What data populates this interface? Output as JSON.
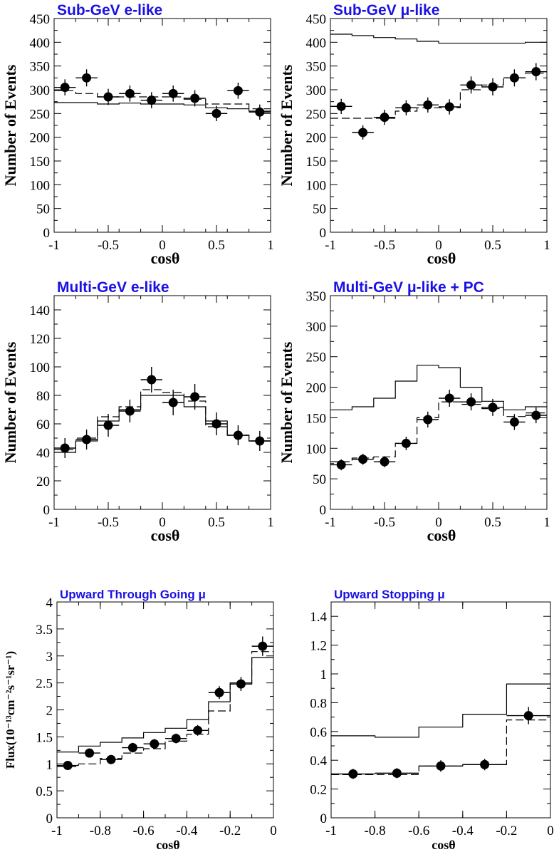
{
  "chart_data": [
    {
      "type": "scatter",
      "title": "Sub-GeV e-like",
      "xlabel": "cosθ",
      "ylabel": "Number of Events",
      "xlim": [
        -1,
        1
      ],
      "ylim": [
        0,
        450
      ],
      "xticks": [
        "-1",
        "-0.5",
        "0",
        "0.5",
        "1"
      ],
      "yticks": [
        "0",
        "50",
        "100",
        "150",
        "200",
        "250",
        "300",
        "350",
        "400",
        "450"
      ],
      "bin_edges": [
        -1,
        -0.8,
        -0.6,
        -0.4,
        -0.2,
        0,
        0.2,
        0.4,
        0.6,
        0.8,
        1
      ],
      "points": {
        "x": [
          -0.9,
          -0.7,
          -0.5,
          -0.3,
          -0.1,
          0.1,
          0.3,
          0.5,
          0.7,
          0.9
        ],
        "y": [
          305,
          325,
          285,
          292,
          278,
          292,
          282,
          250,
          298,
          253
        ],
        "err": [
          17,
          18,
          17,
          17,
          17,
          17,
          17,
          16,
          17,
          16
        ]
      },
      "solid_hist": [
        273,
        273,
        270,
        272,
        270,
        270,
        268,
        262,
        260,
        255
      ],
      "dashed_hist": [
        298,
        292,
        285,
        285,
        285,
        285,
        280,
        270,
        270,
        260
      ]
    },
    {
      "type": "scatter",
      "title": "Sub-GeV μ-like",
      "xlabel": "cosθ",
      "ylabel": "Number of Events",
      "xlim": [
        -1,
        1
      ],
      "ylim": [
        0,
        450
      ],
      "xticks": [
        "-1",
        "-0.5",
        "0",
        "0.5",
        "1"
      ],
      "yticks": [
        "0",
        "50",
        "100",
        "150",
        "200",
        "250",
        "300",
        "350",
        "400",
        "450"
      ],
      "bin_edges": [
        -1,
        -0.8,
        -0.6,
        -0.4,
        -0.2,
        0,
        0.2,
        0.4,
        0.6,
        0.8,
        1
      ],
      "points": {
        "x": [
          -0.9,
          -0.7,
          -0.5,
          -0.3,
          -0.1,
          0.1,
          0.3,
          0.5,
          0.7,
          0.9
        ],
        "y": [
          265,
          210,
          242,
          262,
          268,
          264,
          310,
          306,
          325,
          338
        ],
        "err": [
          16,
          15,
          16,
          16,
          16,
          16,
          18,
          18,
          18,
          18
        ]
      },
      "solid_hist": [
        417,
        414,
        410,
        407,
        402,
        398,
        398,
        398,
        398,
        400
      ],
      "dashed_hist": [
        240,
        240,
        240,
        255,
        262,
        262,
        300,
        310,
        325,
        335
      ]
    },
    {
      "type": "scatter",
      "title": "Multi-GeV e-like",
      "xlabel": "cosθ",
      "ylabel": "Number of Events",
      "xlim": [
        -1,
        1
      ],
      "ylim": [
        0,
        150
      ],
      "xticks": [
        "-1",
        "-0.5",
        "0",
        "0.5",
        "1"
      ],
      "yticks": [
        "0",
        "20",
        "40",
        "60",
        "80",
        "100",
        "120",
        "140"
      ],
      "bin_edges": [
        -1,
        -0.8,
        -0.6,
        -0.4,
        -0.2,
        0,
        0.2,
        0.4,
        0.6,
        0.8,
        1
      ],
      "points": {
        "x": [
          -0.9,
          -0.7,
          -0.5,
          -0.3,
          -0.1,
          0.1,
          0.3,
          0.5,
          0.7,
          0.9
        ],
        "y": [
          43,
          49,
          59,
          69,
          91,
          75,
          79,
          60,
          52,
          48
        ],
        "err": [
          7,
          7,
          8,
          8,
          9,
          9,
          9,
          8,
          7,
          7
        ]
      },
      "solid_hist": [
        40,
        48,
        62,
        70,
        80,
        80,
        72,
        62,
        52,
        48
      ],
      "dashed_hist": [
        42,
        50,
        65,
        72,
        84,
        82,
        76,
        58,
        52,
        48
      ]
    },
    {
      "type": "scatter",
      "title": "Multi-GeV μ-like + PC",
      "xlabel": "cosθ",
      "ylabel": "Number of Events",
      "xlim": [
        -1,
        1
      ],
      "ylim": [
        0,
        350
      ],
      "xticks": [
        "-1",
        "-0.5",
        "0",
        "0.5",
        "1"
      ],
      "yticks": [
        "0",
        "50",
        "100",
        "150",
        "200",
        "250",
        "300",
        "350"
      ],
      "bin_edges": [
        -1,
        -0.8,
        -0.6,
        -0.4,
        -0.2,
        0,
        0.2,
        0.4,
        0.6,
        0.8,
        1
      ],
      "points": {
        "x": [
          -0.9,
          -0.7,
          -0.5,
          -0.3,
          -0.1,
          0.1,
          0.3,
          0.5,
          0.7,
          0.9
        ],
        "y": [
          73,
          82,
          78,
          108,
          147,
          182,
          176,
          167,
          143,
          154
        ],
        "err": [
          9,
          9,
          9,
          11,
          13,
          14,
          14,
          14,
          13,
          13
        ]
      },
      "solid_hist": [
        163,
        168,
        182,
        210,
        236,
        232,
        200,
        177,
        163,
        168
      ],
      "dashed_hist": [
        78,
        84,
        86,
        108,
        150,
        176,
        172,
        165,
        152,
        158
      ]
    },
    {
      "type": "scatter",
      "title": "Upward Through Going μ",
      "xlabel": "cosθ",
      "ylabel": "Flux(10⁻¹³cm⁻²s⁻¹sr⁻¹)",
      "xlim": [
        -1,
        0
      ],
      "ylim": [
        0,
        4
      ],
      "xticks": [
        "-1",
        "-0.8",
        "-0.6",
        "-0.4",
        "-0.2",
        "0"
      ],
      "yticks": [
        "0",
        "0.5",
        "1",
        "1.5",
        "2",
        "2.5",
        "3",
        "3.5",
        "4"
      ],
      "bin_edges": [
        -1,
        -0.9,
        -0.8,
        -0.7,
        -0.6,
        -0.5,
        -0.4,
        -0.3,
        -0.2,
        -0.1,
        0
      ],
      "points": {
        "x": [
          -0.95,
          -0.85,
          -0.75,
          -0.65,
          -0.55,
          -0.45,
          -0.35,
          -0.25,
          -0.15,
          -0.05
        ],
        "y": [
          0.97,
          1.2,
          1.08,
          1.3,
          1.37,
          1.47,
          1.62,
          2.32,
          2.48,
          3.18
        ],
        "err": [
          0.08,
          0.08,
          0.08,
          0.09,
          0.09,
          0.09,
          0.1,
          0.12,
          0.13,
          0.18
        ]
      },
      "solid_hist": [
        1.22,
        1.33,
        1.4,
        1.48,
        1.58,
        1.66,
        1.82,
        2.15,
        2.5,
        2.97
      ],
      "dashed_hist": [
        0.95,
        1.0,
        1.1,
        1.2,
        1.28,
        1.42,
        1.55,
        1.98,
        2.48,
        3.08
      ]
    },
    {
      "type": "scatter",
      "title": "Upward Stopping μ",
      "xlabel": "cosθ",
      "ylabel": "",
      "xlim": [
        -1,
        0
      ],
      "ylim": [
        0,
        1.5
      ],
      "xticks": [
        "-1",
        "-0.8",
        "-0.6",
        "-0.4",
        "-0.2",
        "0"
      ],
      "yticks": [
        "0",
        "0.2",
        "0.4",
        "0.6",
        "0.8",
        "1",
        "1.2",
        "1.4"
      ],
      "bin_edges": [
        -1,
        -0.8,
        -0.6,
        -0.4,
        -0.2,
        0
      ],
      "points": {
        "x": [
          -0.9,
          -0.7,
          -0.5,
          -0.3,
          -0.1
        ],
        "y": [
          0.305,
          0.31,
          0.36,
          0.37,
          0.71
        ],
        "err": [
          0.035,
          0.035,
          0.04,
          0.04,
          0.06
        ]
      },
      "solid_hist": [
        0.57,
        0.56,
        0.63,
        0.72,
        0.93
      ],
      "dashed_hist": [
        0.3,
        0.3,
        0.36,
        0.37,
        0.68
      ]
    }
  ]
}
